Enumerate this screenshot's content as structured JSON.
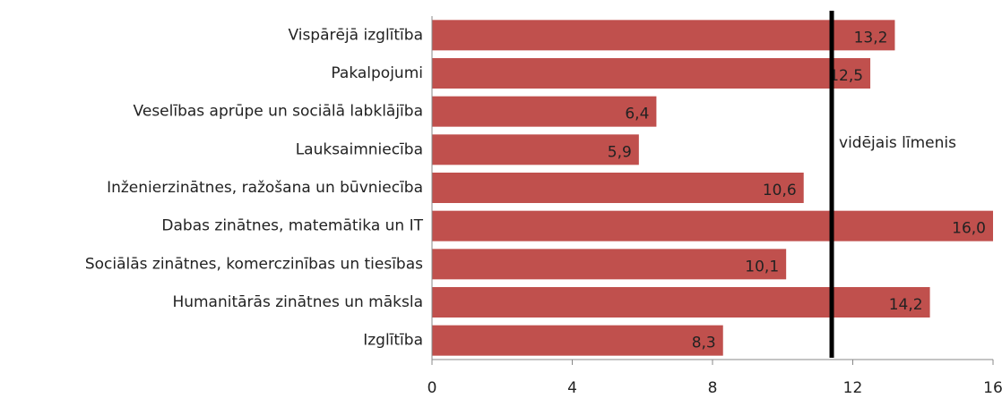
{
  "chart_data": {
    "type": "barh",
    "categories": [
      "Vispārējā izglītība",
      "Pakalpojumi",
      "Veselības aprūpe un sociālā labklājība",
      "Lauksaimniecība",
      "Inženierzinātnes, ražošana un būvniecība",
      "Dabas zinātnes, matemātika un IT",
      "Sociālās zinātnes, komerczinības un tiesības",
      "Humanitārās zinātnes un māksla",
      "Izglītība"
    ],
    "values": [
      13.2,
      12.5,
      6.4,
      5.9,
      10.6,
      16.0,
      10.1,
      14.2,
      8.3
    ],
    "value_labels": [
      "13,2",
      "12,5",
      "6,4",
      "5,9",
      "10,6",
      "16,0",
      "10,1",
      "14,2",
      "8,3"
    ],
    "color": "#c0504d",
    "xlim": [
      0,
      16
    ],
    "xticks": [
      0,
      4,
      8,
      12,
      16
    ],
    "reference_line": {
      "value": 11.4,
      "label": "vidējais līmenis"
    }
  }
}
